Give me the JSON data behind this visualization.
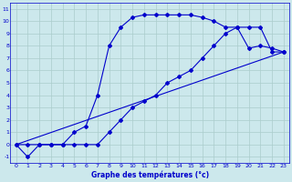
{
  "xlabel": "Graphe des températures (°c)",
  "background_color": "#cce8ec",
  "grid_color": "#aacccc",
  "line_color": "#0000cc",
  "xlim": [
    -0.5,
    23.5
  ],
  "ylim": [
    -1.5,
    11.5
  ],
  "xticks": [
    0,
    1,
    2,
    3,
    4,
    5,
    6,
    7,
    8,
    9,
    10,
    11,
    12,
    13,
    14,
    15,
    16,
    17,
    18,
    19,
    20,
    21,
    22,
    23
  ],
  "yticks": [
    -1,
    0,
    1,
    2,
    3,
    4,
    5,
    6,
    7,
    8,
    9,
    10,
    11
  ],
  "curve1_x": [
    0,
    1,
    2,
    3,
    4,
    5,
    6,
    7,
    8,
    9,
    10,
    11,
    12,
    13,
    14,
    15,
    16,
    17,
    18,
    19,
    20,
    21,
    22,
    23
  ],
  "curve1_y": [
    0,
    -1,
    0,
    0,
    0,
    1,
    1.5,
    4,
    8,
    9.5,
    10.3,
    10.5,
    10.5,
    10.5,
    10.5,
    10.5,
    10.3,
    10.0,
    9.5,
    9.5,
    7.8,
    8.0,
    7.8,
    7.5
  ],
  "curve2_x": [
    0,
    1,
    2,
    3,
    4,
    5,
    6,
    7,
    8,
    9,
    10,
    11,
    12,
    13,
    14,
    15,
    16,
    17,
    18,
    19,
    20,
    21,
    22,
    23
  ],
  "curve2_y": [
    0,
    0,
    0,
    0,
    0,
    0,
    0,
    0,
    1,
    2,
    3,
    3.5,
    4,
    5,
    5.5,
    6,
    7,
    8,
    9,
    9.5,
    9.5,
    9.5,
    7.5,
    7.5
  ],
  "curve3_x": [
    0,
    23
  ],
  "curve3_y": [
    0,
    7.5
  ]
}
